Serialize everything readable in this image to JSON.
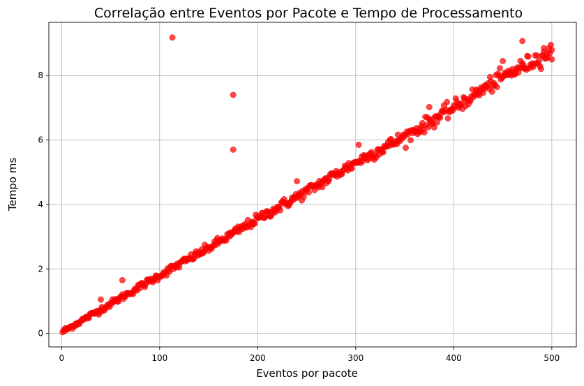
{
  "chart_data": {
    "type": "scatter",
    "title": "Correlação entre Eventos por Pacote e Tempo de Processamento",
    "xlabel": "Eventos por pacote",
    "ylabel": "Tempo ms",
    "xlim": [
      -13,
      525
    ],
    "ylim": [
      -0.42,
      9.65
    ],
    "xticks": [
      0,
      100,
      200,
      300,
      400,
      500
    ],
    "yticks": [
      0,
      2,
      4,
      6,
      8
    ],
    "grid": true,
    "color": "#ff0000",
    "trend": {
      "x": [
        1,
        50,
        100,
        150,
        200,
        250,
        300,
        350,
        400,
        450,
        500
      ],
      "y": [
        0.05,
        0.92,
        1.8,
        2.65,
        3.55,
        4.4,
        5.3,
        6.1,
        7.0,
        7.95,
        8.75
      ]
    },
    "outliers": [
      {
        "x": 113,
        "y": 9.18
      },
      {
        "x": 175,
        "y": 7.4
      },
      {
        "x": 175,
        "y": 5.7
      },
      {
        "x": 470,
        "y": 9.07
      },
      {
        "x": 62,
        "y": 1.65
      },
      {
        "x": 40,
        "y": 1.05
      },
      {
        "x": 375,
        "y": 7.02
      },
      {
        "x": 303,
        "y": 5.85
      },
      {
        "x": 240,
        "y": 4.72
      },
      {
        "x": 450,
        "y": 8.45
      },
      {
        "x": 492,
        "y": 8.85
      },
      {
        "x": 500,
        "y": 8.5
      }
    ]
  }
}
